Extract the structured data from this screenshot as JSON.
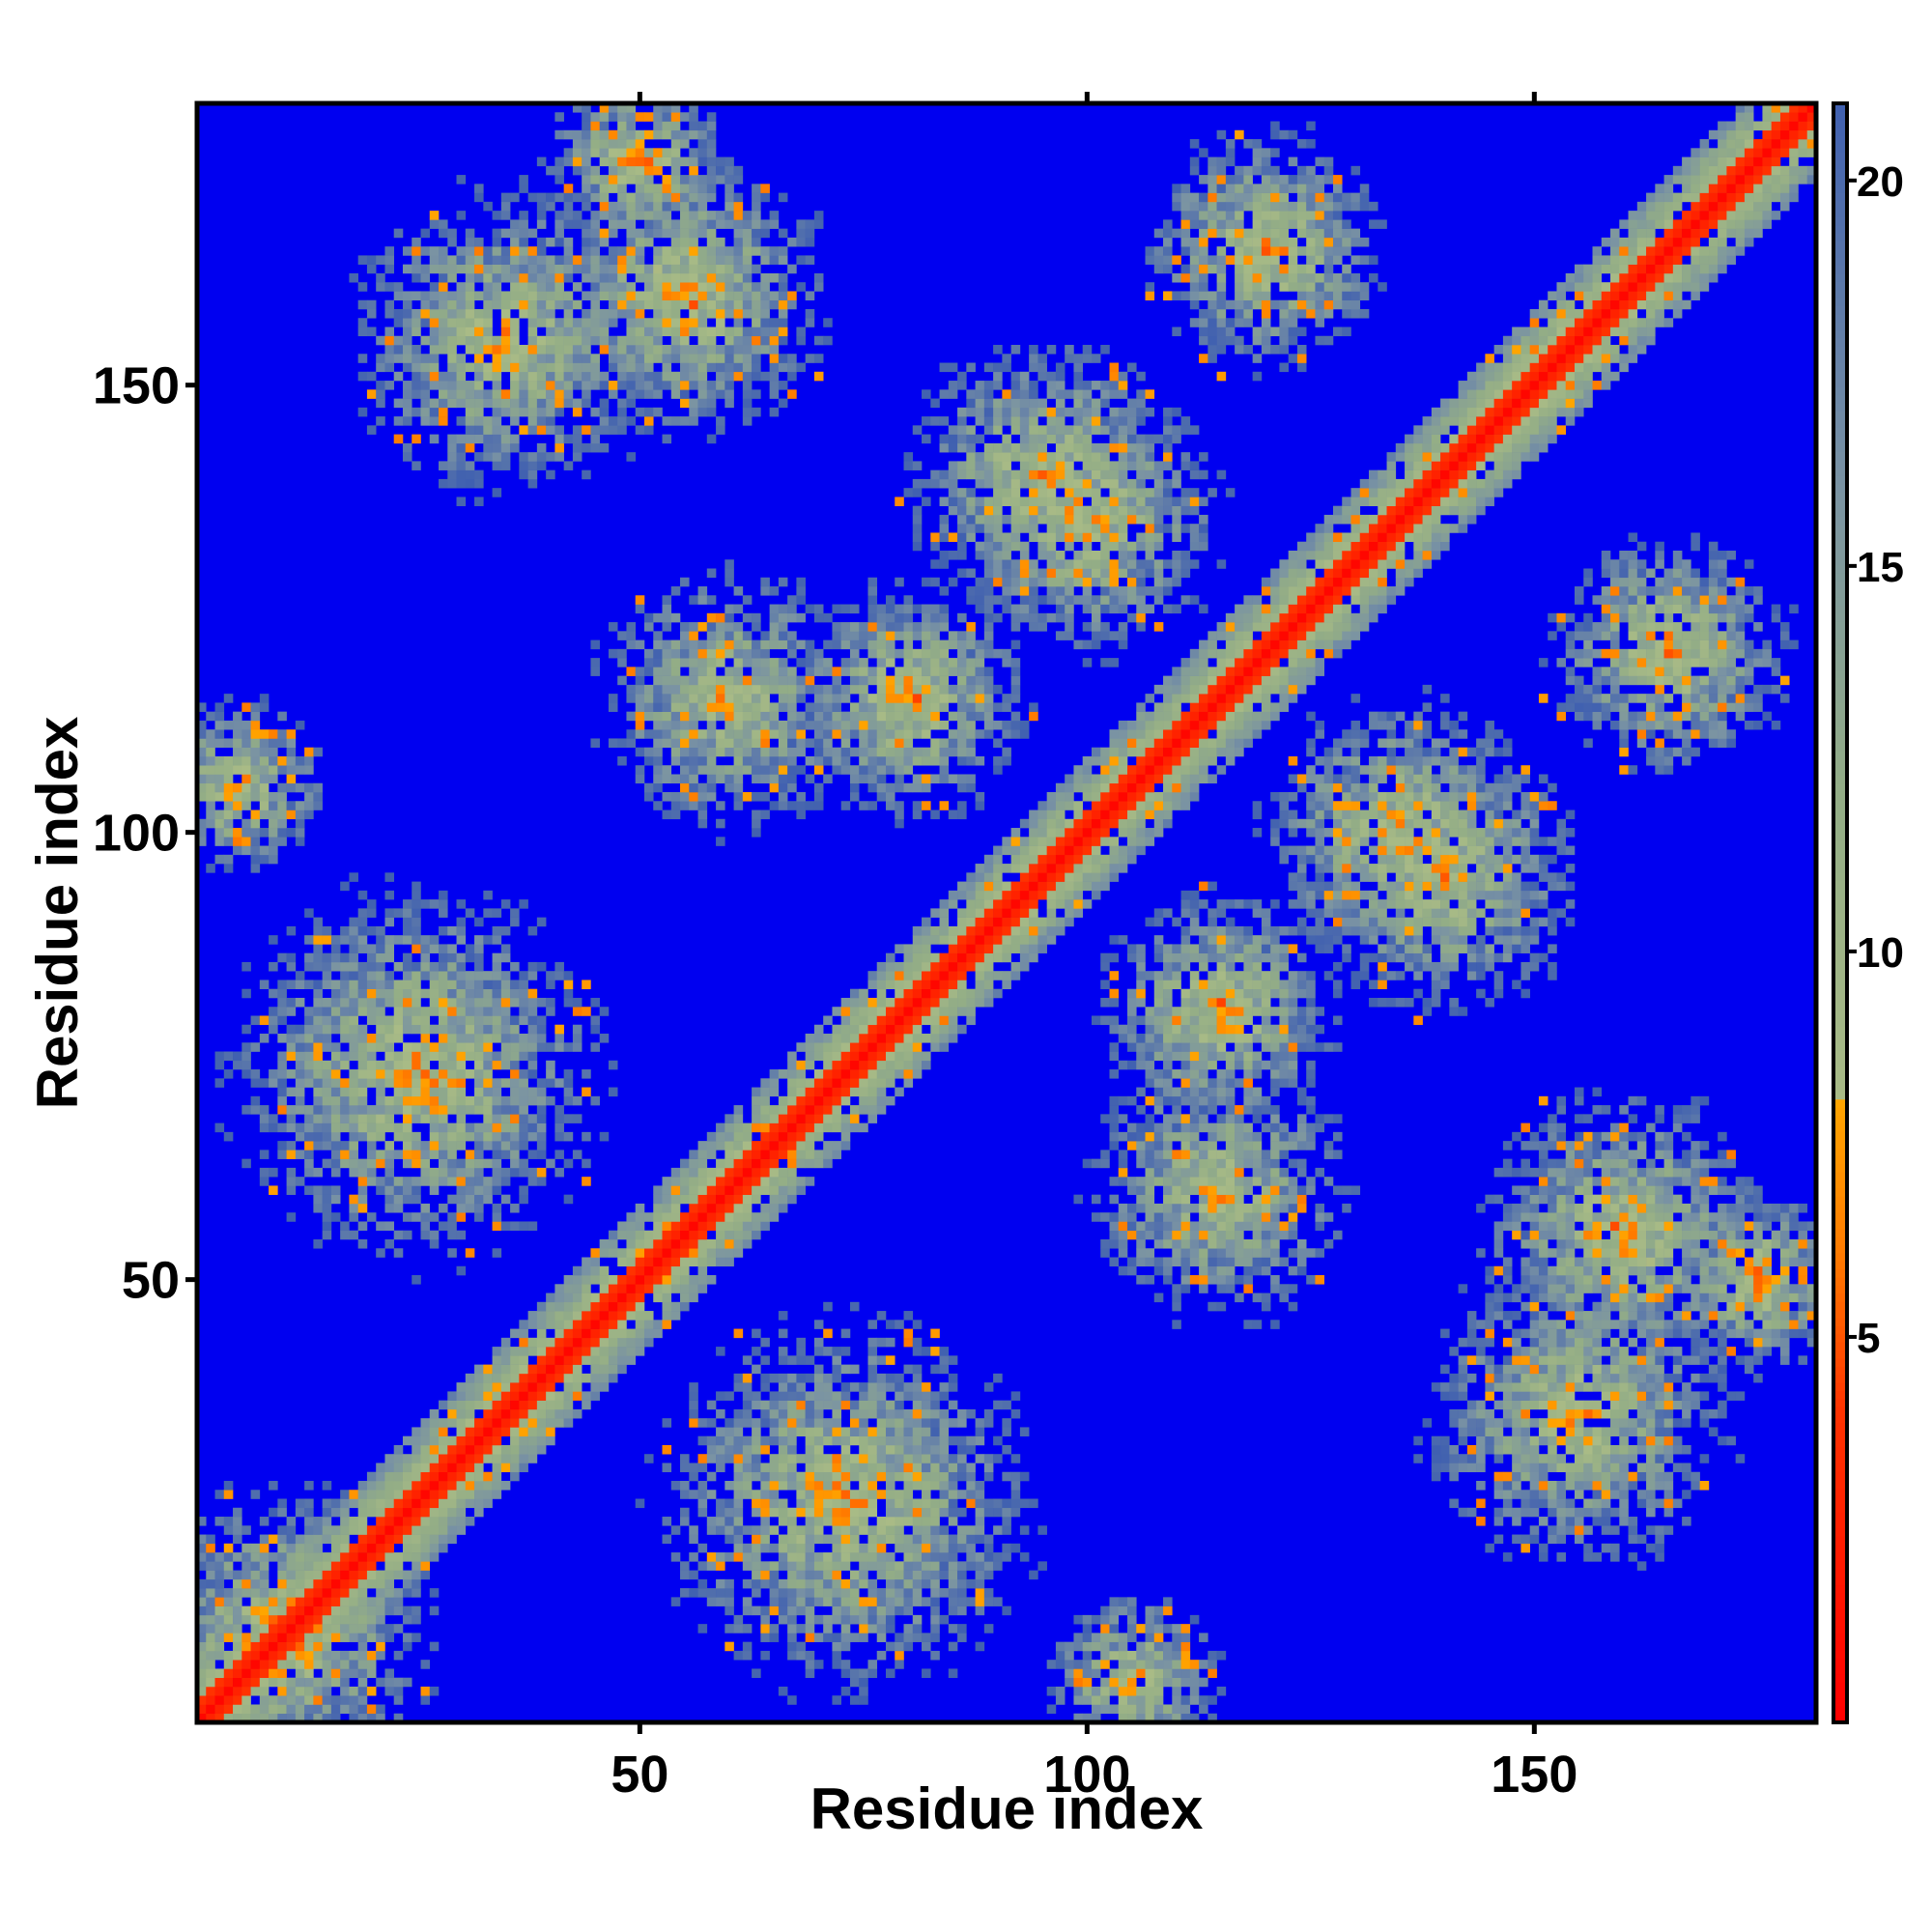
{
  "chart_data": {
    "type": "heatmap",
    "title": "",
    "xlabel": "Residue index",
    "ylabel": "Residue index",
    "n_residues": 181,
    "xlim": [
      1,
      181
    ],
    "ylim": [
      1,
      181
    ],
    "x_ticks": [
      50,
      100,
      150
    ],
    "y_ticks": [
      50,
      100,
      150
    ],
    "colorbar": {
      "ticks": [
        5,
        10,
        15,
        20
      ],
      "range": [
        0,
        21
      ],
      "colors": [
        {
          "value": 0,
          "color": "#ff0000"
        },
        {
          "value": 4,
          "color": "#ff3300"
        },
        {
          "value": 6,
          "color": "#ff7a00"
        },
        {
          "value": 8,
          "color": "#ffa500"
        },
        {
          "value": 8.01,
          "color": "#a9bb86"
        },
        {
          "value": 12,
          "color": "#93ad86"
        },
        {
          "value": 16,
          "color": "#7a93a3"
        },
        {
          "value": 21,
          "color": "#4060b0"
        }
      ],
      "out_of_range_color": "#0000f0"
    },
    "distance_cutoff": 21,
    "contact_clusters": [
      {
        "x": 10,
        "y": 10,
        "w": 12,
        "strength": 0.9
      },
      {
        "x": 25,
        "y": 73,
        "w": 16,
        "strength": 0.75
      },
      {
        "x": 73,
        "y": 25,
        "w": 16,
        "strength": 0.75
      },
      {
        "x": 55,
        "y": 160,
        "w": 12,
        "strength": 0.8
      },
      {
        "x": 160,
        "y": 55,
        "w": 12,
        "strength": 0.8
      },
      {
        "x": 80,
        "y": 115,
        "w": 10,
        "strength": 0.85
      },
      {
        "x": 115,
        "y": 80,
        "w": 10,
        "strength": 0.85
      },
      {
        "x": 120,
        "y": 165,
        "w": 10,
        "strength": 0.85
      },
      {
        "x": 165,
        "y": 120,
        "w": 10,
        "strength": 0.85
      },
      {
        "x": 95,
        "y": 140,
        "w": 12,
        "strength": 0.7
      },
      {
        "x": 140,
        "y": 95,
        "w": 12,
        "strength": 0.7
      },
      {
        "x": 35,
        "y": 155,
        "w": 14,
        "strength": 0.6
      },
      {
        "x": 155,
        "y": 35,
        "w": 14,
        "strength": 0.6
      },
      {
        "x": 5,
        "y": 105,
        "w": 8,
        "strength": 0.7
      },
      {
        "x": 105,
        "y": 5,
        "w": 8,
        "strength": 0.7
      },
      {
        "x": 175,
        "y": 50,
        "w": 8,
        "strength": 0.8
      },
      {
        "x": 50,
        "y": 175,
        "w": 8,
        "strength": 0.8
      },
      {
        "x": 60,
        "y": 115,
        "w": 12,
        "strength": 0.6
      },
      {
        "x": 115,
        "y": 60,
        "w": 12,
        "strength": 0.6
      },
      {
        "x": 135,
        "y": 100,
        "w": 12,
        "strength": 0.7
      },
      {
        "x": 100,
        "y": 135,
        "w": 12,
        "strength": 0.7
      }
    ]
  }
}
